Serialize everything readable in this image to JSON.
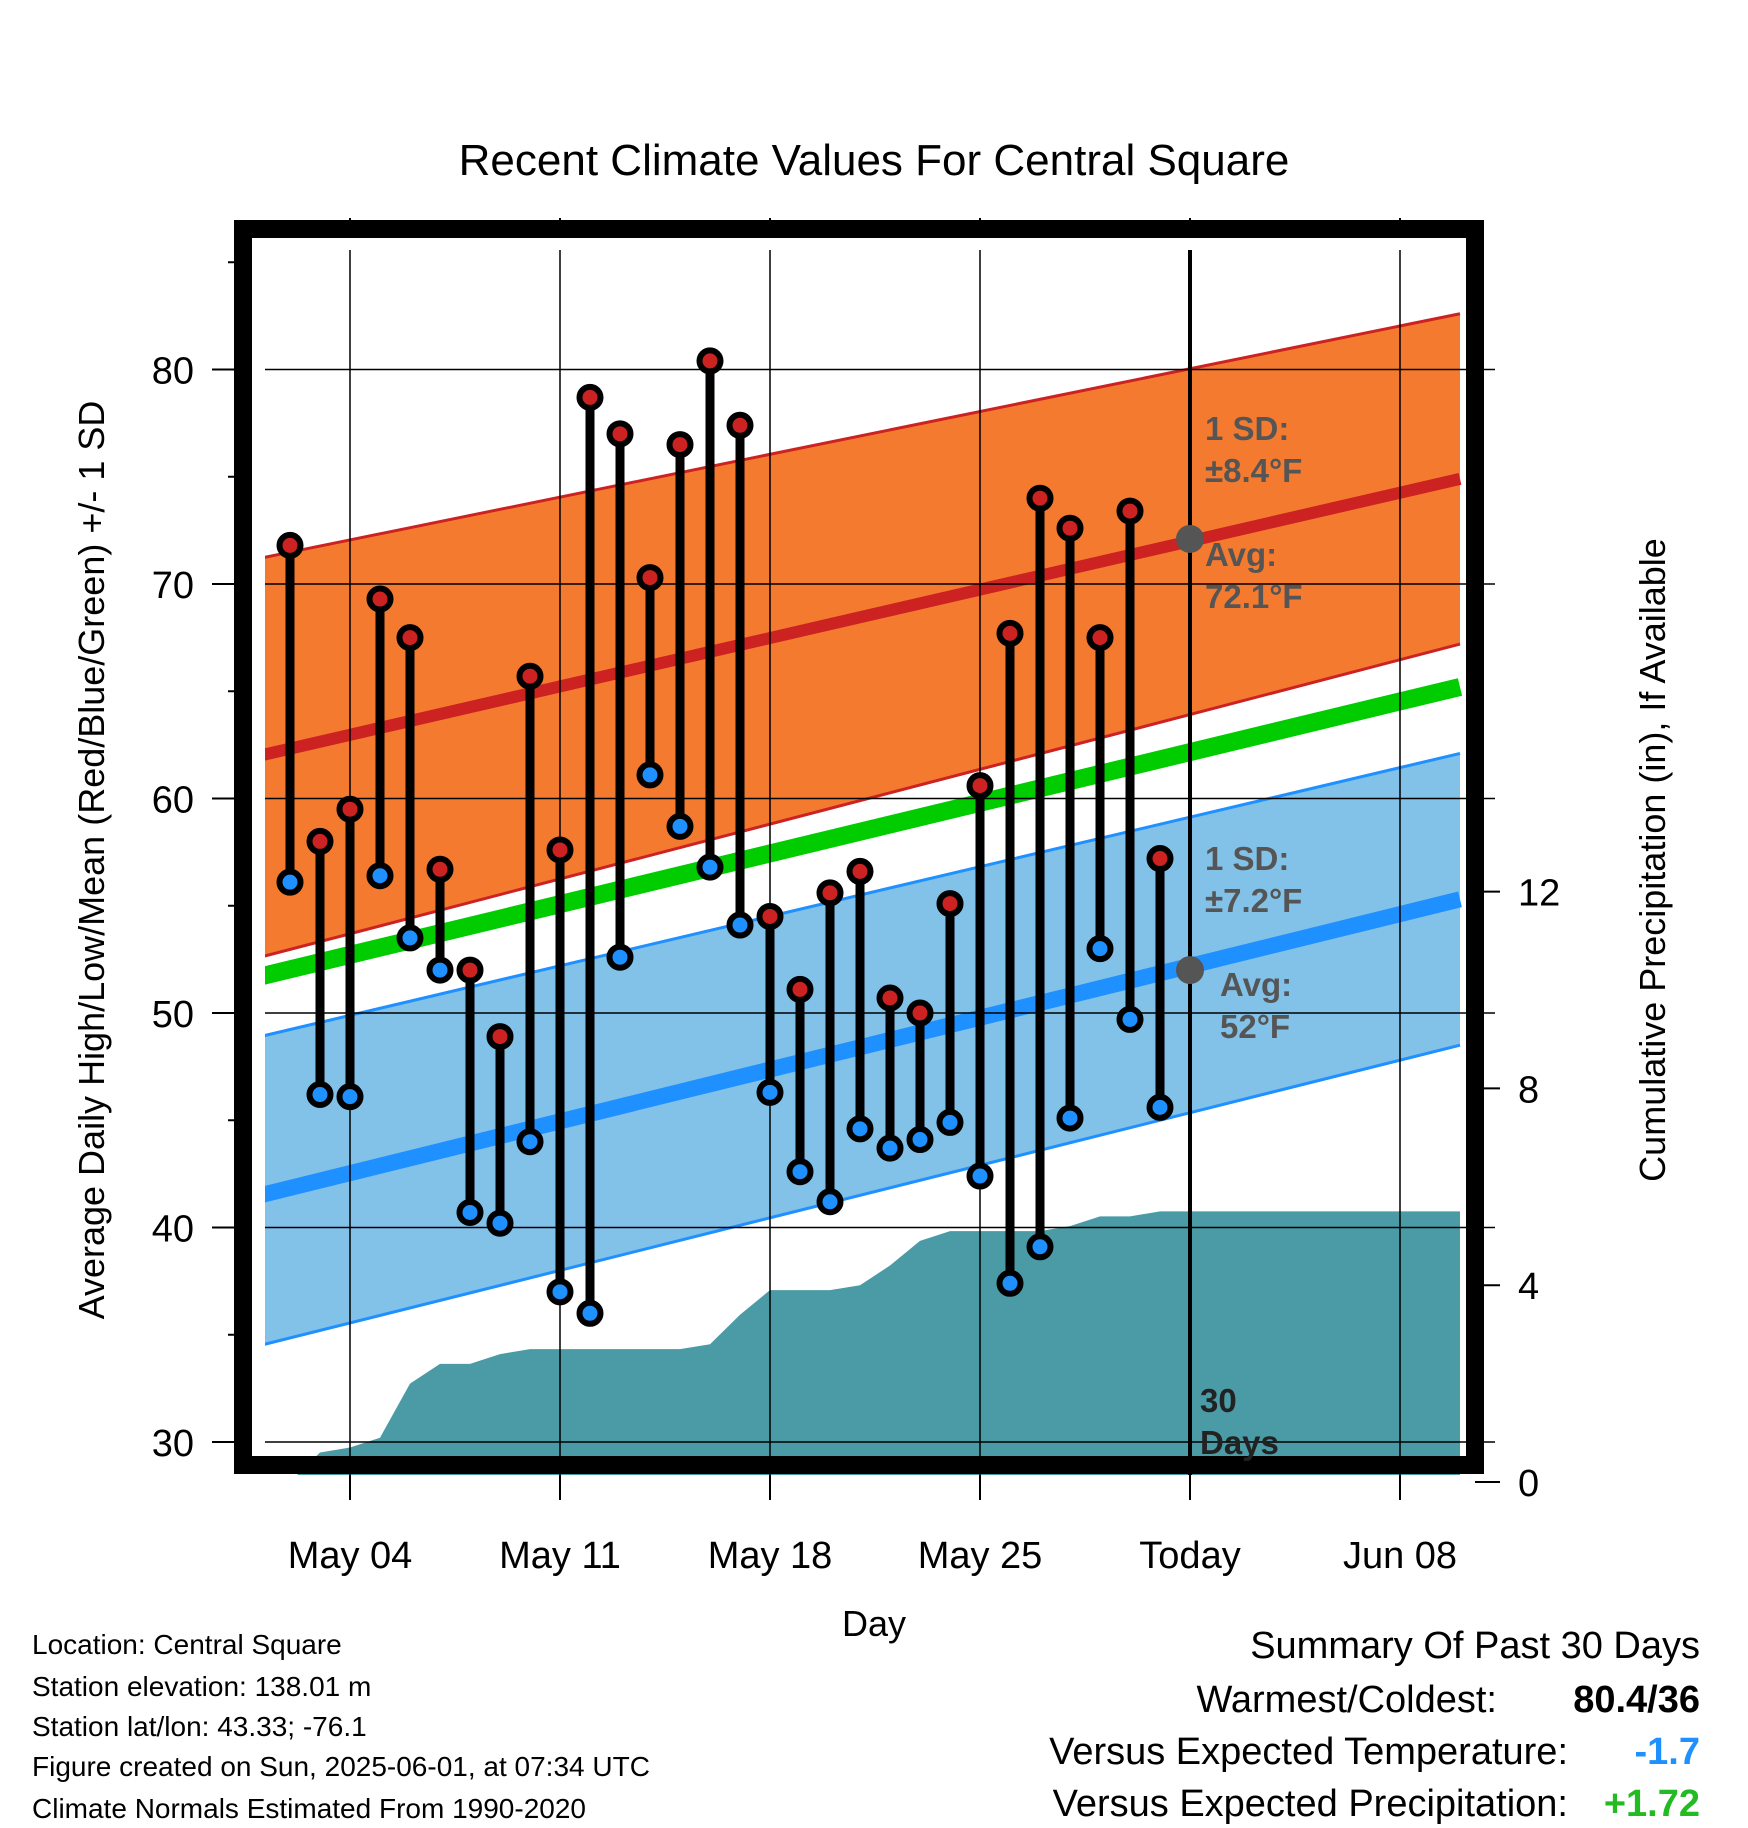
{
  "chart_data": {
    "type": "line",
    "title": "Recent Climate Values For Central Square",
    "xlabel": "Day",
    "ylabel_left": "Average Daily High/Low/Mean (Red/Blue/Green) +/- 1 SD",
    "ylabel_right": "Cumulative Precipitation (in), If Available",
    "x_tick_labels": [
      "May 04",
      "May 11",
      "May 18",
      "May 25",
      "Today",
      "Jun 08"
    ],
    "y_left_ticks": [
      "30",
      "40",
      "50",
      "60",
      "70",
      "80"
    ],
    "y_left_range": [
      28,
      85
    ],
    "y_right_ticks": [
      "0",
      "4",
      "8",
      "12"
    ],
    "y_right_range": [
      0,
      24
    ],
    "grid": true,
    "days": [
      "May 02",
      "May 03",
      "May 04",
      "May 05",
      "May 06",
      "May 07",
      "May 08",
      "May 09",
      "May 10",
      "May 11",
      "May 12",
      "May 13",
      "May 14",
      "May 15",
      "May 16",
      "May 17",
      "May 18",
      "May 19",
      "May 20",
      "May 21",
      "May 22",
      "May 23",
      "May 24",
      "May 25",
      "May 26",
      "May 27",
      "May 28",
      "May 29",
      "May 30",
      "May 31"
    ],
    "daily_high": [
      71.8,
      58.0,
      59.5,
      69.3,
      67.5,
      56.7,
      52.0,
      48.9,
      65.7,
      57.6,
      78.7,
      77.0,
      70.3,
      76.5,
      80.4,
      77.4,
      54.5,
      51.1,
      55.6,
      56.6,
      50.7,
      50.0,
      55.1,
      60.6,
      67.7,
      74.0,
      72.6,
      67.5,
      73.4,
      57.2
    ],
    "daily_low": [
      56.1,
      46.2,
      46.1,
      56.4,
      53.5,
      52.0,
      40.7,
      40.2,
      44.0,
      37.0,
      36.0,
      52.6,
      61.1,
      58.7,
      56.8,
      54.1,
      46.3,
      42.6,
      41.2,
      44.6,
      43.7,
      44.1,
      44.9,
      42.4,
      37.4,
      39.1,
      45.1,
      53.0,
      49.7,
      45.6
    ],
    "normals": {
      "start_day": "May 01",
      "end_day": "Jun 10",
      "high_avg": [
        62.0,
        74.9
      ],
      "high_sd_band_start": [
        52.6,
        71.2
      ],
      "high_sd_band_end": [
        67.2,
        82.6
      ],
      "low_avg": [
        41.5,
        55.3
      ],
      "low_sd_band_start": [
        34.5,
        48.9
      ],
      "low_sd_band_end": [
        48.5,
        62.1
      ],
      "mean_avg": [
        51.7,
        65.2
      ]
    },
    "precip_cumulative": {
      "days": [
        "May 02",
        "May 03",
        "May 04",
        "May 05",
        "May 06",
        "May 07",
        "May 08",
        "May 09",
        "May 10",
        "May 11",
        "May 12",
        "May 13",
        "May 14",
        "May 15",
        "May 16",
        "May 17",
        "May 18",
        "May 19",
        "May 20",
        "May 21",
        "May 22",
        "May 23",
        "May 24",
        "May 25",
        "May 26",
        "May 27",
        "May 28",
        "May 29",
        "May 30",
        "May 31",
        "Jun 10"
      ],
      "values": [
        0.0,
        0.6,
        0.7,
        0.9,
        2.0,
        2.4,
        2.4,
        2.6,
        2.7,
        2.7,
        2.7,
        2.7,
        2.7,
        2.7,
        2.8,
        3.4,
        3.9,
        3.9,
        3.9,
        4.0,
        4.4,
        4.9,
        5.1,
        5.1,
        5.1,
        5.1,
        5.2,
        5.4,
        5.4,
        5.5,
        5.5
      ]
    },
    "today_marker": {
      "day": "Today",
      "high_avg": 72.1,
      "low_avg": 52
    },
    "annotations": {
      "high_sd_line1": "1 SD:",
      "high_sd_line2": "±8.4°F",
      "high_avg_line1": "Avg:",
      "high_avg_line2": "72.1°F",
      "low_sd_line1": "1 SD:",
      "low_sd_line2": "±7.2°F",
      "low_avg_line1": "Avg:",
      "low_avg_line2": "52°F",
      "period_line1": "30",
      "period_line2": "Days"
    },
    "colors": {
      "high": "#cc2222",
      "low": "#1e90ff",
      "mean": "#00cc00",
      "high_band": "#f47a30",
      "low_band": "#82c1e8",
      "precip": "#4a9ba6"
    }
  },
  "info": {
    "location": "Location: Central Square",
    "elevation": "Station elevation: 138.01 m",
    "latlon": "Station lat/lon: 43.33; -76.1",
    "created": "Figure created on Sun, 2025-06-01, at 07:34 UTC",
    "normals": "Climate Normals Estimated From 1990-2020"
  },
  "summary": {
    "heading": "Summary Of Past 30 Days",
    "warm_cold_label": "Warmest/Coldest:",
    "warm_cold_value": "80.4/36",
    "temp_label": "Versus Expected Temperature:",
    "temp_value": "-1.7",
    "temp_color": "#1e90ff",
    "precip_label": "Versus Expected Precipitation:",
    "precip_value": "+1.72",
    "precip_color": "#22bb22"
  }
}
